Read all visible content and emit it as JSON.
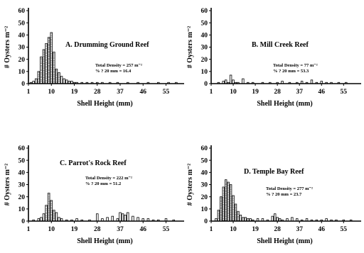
{
  "chart_data": [
    {
      "type": "bar",
      "title": "A. Drumming Ground Reef",
      "total_density_text": "Total Density = 257 m⁻²",
      "pct_text": "% ? 20 mm = 16.4",
      "xlabel": "Shell Height (mm)",
      "ylabel": "# Oysters m⁻²",
      "xticks": [
        "1",
        "10",
        "19",
        "28",
        "37",
        "46",
        "55"
      ],
      "yticks": [
        "0",
        "10",
        "20",
        "30",
        "40",
        "50",
        "60"
      ],
      "ylim": [
        0,
        60
      ],
      "xlim": [
        1,
        61
      ],
      "x": [
        2,
        3,
        4,
        5,
        6,
        7,
        8,
        9,
        10,
        11,
        12,
        13,
        14,
        15,
        16,
        17,
        18,
        19,
        20,
        22,
        24,
        26,
        28,
        30,
        33,
        36,
        40,
        44,
        48,
        52,
        56,
        59
      ],
      "values": [
        1,
        2,
        4,
        10,
        22,
        28,
        33,
        38,
        42,
        26,
        12,
        9,
        6,
        4,
        3,
        2,
        2,
        1,
        1,
        1,
        1,
        1,
        1,
        1,
        1,
        1,
        1,
        1,
        1,
        1,
        1,
        1
      ]
    },
    {
      "type": "bar",
      "title": "B. Mill Creek Reef",
      "total_density_text": "Total Density = 77 m⁻²",
      "pct_text": "% ? 20 mm = 53.3",
      "xlabel": "Shell Height (mm)",
      "ylabel": "# Oysters m⁻²",
      "xticks": [
        "1",
        "10",
        "19",
        "28",
        "37",
        "46",
        "55"
      ],
      "yticks": [
        "0",
        "10",
        "20",
        "30",
        "40",
        "50",
        "60"
      ],
      "ylim": [
        0,
        60
      ],
      "xlim": [
        1,
        61
      ],
      "x": [
        4,
        6,
        7,
        8,
        9,
        10,
        11,
        12,
        14,
        16,
        18,
        22,
        25,
        28,
        30,
        33,
        36,
        38,
        40,
        42,
        44,
        46,
        48,
        50,
        53,
        56
      ],
      "values": [
        1,
        2,
        3,
        1,
        7,
        3,
        1,
        1,
        4,
        1,
        1,
        1,
        1,
        1,
        2,
        1,
        1,
        2,
        1,
        3,
        1,
        2,
        1,
        1,
        1,
        1
      ]
    },
    {
      "type": "bar",
      "title": "C. Parrot's Rock Reef",
      "total_density_text": "Total Density = 222 m⁻²",
      "pct_text": "% ? 20 mm = 51.2",
      "xlabel": "Shell Height (mm)",
      "ylabel": "# Oysters m⁻²",
      "xticks": [
        "1",
        "10",
        "19",
        "28",
        "37",
        "46",
        "55"
      ],
      "yticks": [
        "0",
        "10",
        "20",
        "30",
        "40",
        "50",
        "60"
      ],
      "ylim": [
        0,
        60
      ],
      "xlim": [
        1,
        61
      ],
      "x": [
        3,
        5,
        6,
        7,
        8,
        9,
        10,
        11,
        12,
        13,
        14,
        16,
        18,
        20,
        22,
        25,
        28,
        30,
        32,
        34,
        36,
        37,
        38,
        39,
        40,
        42,
        44,
        46,
        48,
        50,
        52,
        55,
        58
      ],
      "values": [
        1,
        2,
        3,
        6,
        13,
        23,
        17,
        9,
        7,
        3,
        2,
        1,
        1,
        2,
        1,
        1,
        6,
        2,
        3,
        4,
        2,
        7,
        6,
        5,
        7,
        4,
        3,
        2,
        2,
        1,
        1,
        2,
        1
      ]
    },
    {
      "type": "bar",
      "title": "D. Temple Bay Reef",
      "total_density_text": "Total Density = 277 m⁻²",
      "pct_text": "% ? 20 mm = 23.7",
      "xlabel": "Shell Height (mm)",
      "ylabel": "# Oysters m⁻²",
      "xticks": [
        "1",
        "10",
        "19",
        "28",
        "37",
        "46",
        "55"
      ],
      "yticks": [
        "0",
        "10",
        "20",
        "30",
        "40",
        "50",
        "60"
      ],
      "ylim": [
        0,
        60
      ],
      "xlim": [
        1,
        61
      ],
      "x": [
        3,
        4,
        5,
        6,
        7,
        8,
        9,
        10,
        11,
        12,
        13,
        14,
        15,
        16,
        17,
        18,
        20,
        22,
        24,
        26,
        27,
        28,
        29,
        30,
        32,
        34,
        36,
        38,
        40,
        42,
        44,
        46,
        48,
        50,
        52,
        55,
        58
      ],
      "values": [
        2,
        9,
        20,
        28,
        34,
        32,
        30,
        21,
        14,
        8,
        5,
        3,
        3,
        2,
        2,
        1,
        2,
        2,
        1,
        4,
        6,
        3,
        2,
        1,
        2,
        3,
        2,
        1,
        2,
        1,
        1,
        1,
        2,
        1,
        1,
        1,
        1
      ]
    }
  ]
}
